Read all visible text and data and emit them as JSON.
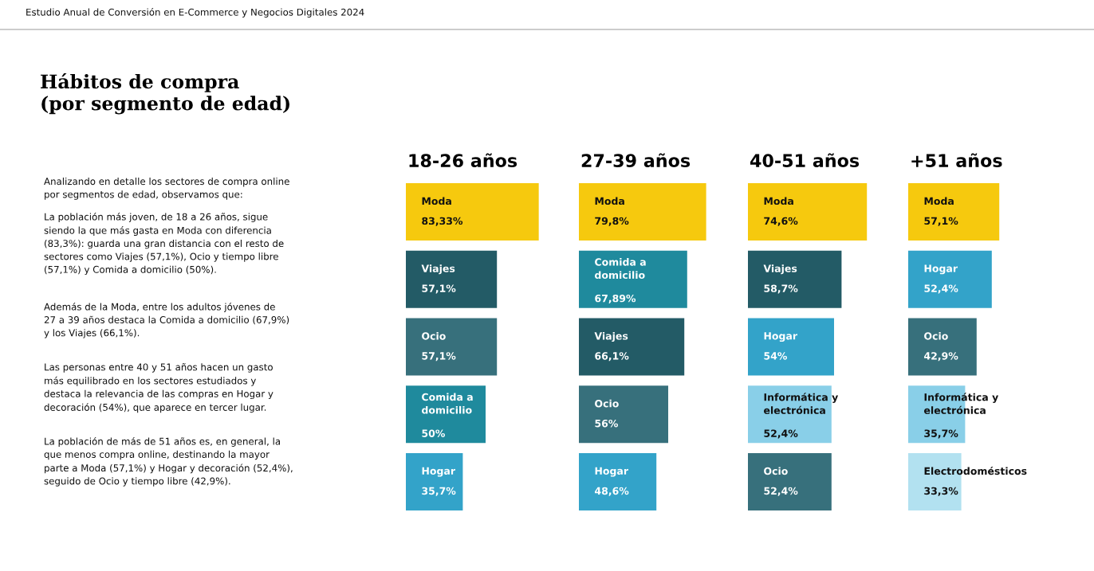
{
  "chart_data": [
    {
      "type": "other",
      "title": "Hábitos de compra\n(por segmento de edad)",
      "annotations": [
        "Estudio Anual de Conversión en E-Commerce y Negocios Digitales 2024",
        "Analizando en detalle los sectores de compra online\npor segmentos de edad, observamos que:",
        "La población más joven, de 18 a 26 años, sigue\nsiendo la que más gasta en Moda con diferencia\n(83,3%): guarda una gran distancia con el resto de\nsectores como Viajes (57,1%), Ocio y tiempo libre\n(57,1%) y Comida a domicilio (50%).",
        "Además de la Moda, entre los adultos jóvenes de\n27 a 39 años destaca la Comida a domicilio (67,9%)\ny los Viajes (66,1%).",
        "Las personas entre 40 y 51 años hacen un gasto\nmás equilibrado en los sectores estudiados y\ndestaca la relevancia de las compras en Hogar y\ndecoración (54%), que aparece en tercer lugar.",
        "La población de más de 51 años es, en general, la\nque menos compra online, destinando la mayor\nparte a Moda (57,1%) y Hogar y decoración (52,4%),\nseguido de Ocio y tiempo libre (42,9%)."
      ]
    },
    {
      "type": "bar",
      "orientation": "horizontal",
      "title": "18-26 años",
      "categories": [
        "Moda",
        "Viajes",
        "Ocio",
        "Comida a\ndomicilio",
        "Hogar"
      ],
      "values": [
        83.33,
        57.1,
        57.1,
        50,
        35.7
      ],
      "value_labels": [
        "83,33%",
        "57,1%",
        "57,1%",
        "50%",
        "35,7%"
      ],
      "colors": [
        "#f6c90e",
        "#235b66",
        "#37707c",
        "#1f8a9d",
        "#33a3c9"
      ]
    },
    {
      "type": "bar",
      "orientation": "horizontal",
      "title": "27-39 años",
      "categories": [
        "Moda",
        "Comida a\ndomicilio",
        "Viajes",
        "Ocio",
        "Hogar"
      ],
      "values": [
        79.8,
        67.89,
        66.1,
        56,
        48.6
      ],
      "value_labels": [
        "79,8%",
        "67,89%",
        "66,1%",
        "56%",
        "48,6%"
      ],
      "colors": [
        "#f6c90e",
        "#1f8a9d",
        "#235b66",
        "#37707c",
        "#33a3c9"
      ]
    },
    {
      "type": "bar",
      "orientation": "horizontal",
      "title": "40-51 años",
      "categories": [
        "Moda",
        "Viajes",
        "Hogar",
        "Informática y\nelectrónica",
        "Ocio"
      ],
      "values": [
        74.6,
        58.7,
        54,
        52.4,
        52.4
      ],
      "value_labels": [
        "74,6%",
        "58,7%",
        "54%",
        "52,4%",
        "52,4%"
      ],
      "colors": [
        "#f6c90e",
        "#235b66",
        "#33a3c9",
        "#89cfe8",
        "#37707c"
      ]
    },
    {
      "type": "bar",
      "orientation": "horizontal",
      "title": "+51 años",
      "categories": [
        "Moda",
        "Hogar",
        "Ocio",
        "Informática y\nelectrónica",
        "Electrodomésticos"
      ],
      "values": [
        57.1,
        52.4,
        42.9,
        35.7,
        33.3
      ],
      "value_labels": [
        "57,1%",
        "52,4%",
        "42,9%",
        "35,7%",
        "33,3%"
      ],
      "colors": [
        "#f6c90e",
        "#33a3c9",
        "#37707c",
        "#89cfe8",
        "#b2e1f0"
      ]
    }
  ]
}
